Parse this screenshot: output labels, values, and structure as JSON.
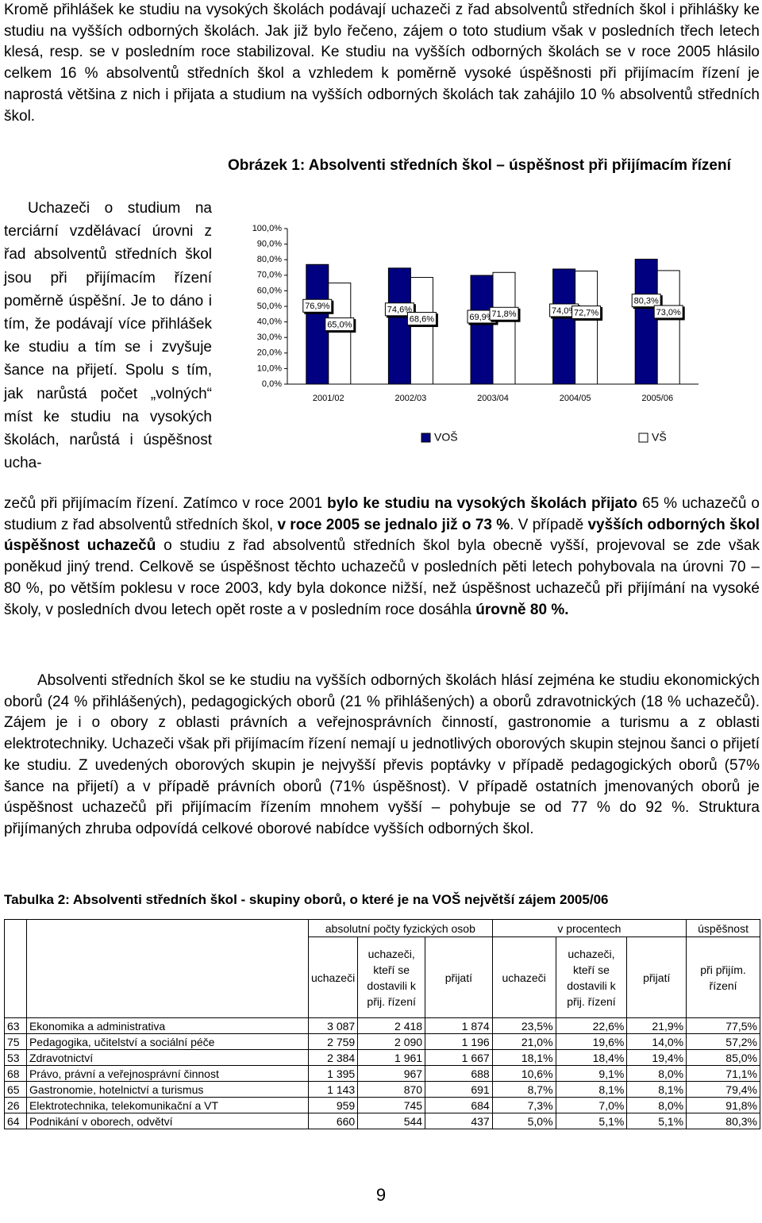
{
  "intro": "Kromě přihlášek ke studiu na vysokých školách podávají uchazeči z řad absolventů středních škol i přihlášky ke studiu na vyšších odborných školách. Jak již bylo řečeno, zájem o toto studium však v posledních třech letech klesá, resp. se v posledním roce stabilizoval. Ke studiu na vyšších odborných školách se v roce 2005 hlásilo celkem 16 % absolventů středních škol a vzhledem k poměrně vysoké úspěšnosti při přijímacím řízení je naprostá většina z nich i přijata a studium na vyšších odborných školách tak zahájilo 10 % absolventů středních škol.",
  "sidebar": "Uchazeči o studium na terciární vzdělávací úrovni z řad absolventů středních škol jsou při přijímacím řízení poměrně úspěšní. Je to dáno i tím, že podávají více přihlášek ke studiu a tím se i zvyšuje šance na přijetí. Spolu s tím, jak narůstá počet „volných“ míst ke studiu na vysokých školách, narůstá i úspěšnost ucha-",
  "paragraph2": {
    "runs": [
      {
        "text": "zečů při přijímacím řízení. Zatímco v roce 2001 ",
        "bold": false
      },
      {
        "text": "bylo ke studiu na vysokých školách přijato",
        "bold": true
      },
      {
        "text": " 65 % uchazečů o studium z řad absolventů středních škol, ",
        "bold": false
      },
      {
        "text": "v roce 2005 se jednalo již o 73 %",
        "bold": true
      },
      {
        "text": ". V případě ",
        "bold": false
      },
      {
        "text": "vyšších odborných škol úspěšnost uchazečů",
        "bold": true
      },
      {
        "text": " o studiu z řad absolventů středních škol byla obecně vyšší, projevoval se zde však poněkud jiný trend. Celkově se úspěšnost těchto uchazečů v posledních pěti letech pohybovala na úrovni 70 – 80 %, po větším poklesu v roce 2003, kdy byla dokonce nižší, než úspěšnost uchazečů při přijímání na vysoké školy, v posledních dvou letech opět roste a v posledním roce dosáhla ",
        "bold": false
      },
      {
        "text": "úrovně 80 %.",
        "bold": true
      }
    ]
  },
  "paragraph3": "Absolventi středních škol se ke studiu na vyšších odborných školách hlásí zejména ke studiu ekonomických oborů (24 % přihlášených), pedagogických oborů (21 % přihlášených) a oborů zdravotnických (18 % uchazečů). Zájem je i o obory z oblasti právních a veřejnosprávních činností, gastronomie a turismu a z oblasti elektrotechniky. Uchazeči však při přijímacím řízení nemají u jednotlivých oborových skupin stejnou šanci o přijetí ke studiu. Z uvedených oborových skupin je nejvyšší převis poptávky v případě pedagogických oborů (57% šance na přijetí) a v případě právních oborů (71% úspěšnost). V případě ostatních jmenovaných oborů je úspěšnost uchazečů při přijímacím řízením mnohem vyšší – pohybuje se od 77 % do 92 %. Struktura přijímaných zhruba odpovídá celkové oborové nabídce vyšších odborných škol.",
  "chart_data": {
    "type": "bar",
    "title": "Obrázek 1: Absolventi středních škol – úspěšnost při přijímacím řízení",
    "categories": [
      "2001/02",
      "2002/03",
      "2003/04",
      "2004/05",
      "2005/06"
    ],
    "series": [
      {
        "name": "VOŠ",
        "color": "#000080",
        "values": [
          76.9,
          74.6,
          69.9,
          74.0,
          80.3
        ],
        "value_labels": [
          "76,9%",
          "74,6%",
          "69,9%",
          "74,0%",
          "80,3%"
        ]
      },
      {
        "name": "VŠ",
        "color": "#ffffff",
        "values": [
          65.0,
          68.6,
          71.8,
          72.7,
          73.0
        ],
        "value_labels": [
          "65,0%",
          "68,6%",
          "71,8%",
          "72,7%",
          "73,0%"
        ]
      }
    ],
    "ylim": [
      0,
      100
    ],
    "yticks": [
      {
        "value": 0,
        "label": "0,0%"
      },
      {
        "value": 10,
        "label": "10,0%"
      },
      {
        "value": 20,
        "label": "20,0%"
      },
      {
        "value": 30,
        "label": "30,0%"
      },
      {
        "value": 40,
        "label": "40,0%"
      },
      {
        "value": 50,
        "label": "50,0%"
      },
      {
        "value": 60,
        "label": "60,0%"
      },
      {
        "value": 70,
        "label": "70,0%"
      },
      {
        "value": 80,
        "label": "80,0%"
      },
      {
        "value": 90,
        "label": "90,0%"
      },
      {
        "value": 100,
        "label": "100,0%"
      }
    ],
    "grid": false,
    "legend": "bottom"
  },
  "table": {
    "title": "Tabulka 2: Absolventi středních škol - skupiny oborů, o které je na VOŠ největší zájem 2005/06",
    "group_headers": [
      "absolutní počty fyzických osob",
      "v procentech",
      "úspěšnost"
    ],
    "headers": [
      "uchazeči",
      "uchazeči, kteří se dostavili k přij. řízení",
      "přijatí",
      "uchazeči",
      "uchazeči, kteří se dostavili k přij. řízení",
      "přijatí",
      "při přijím. řízení"
    ],
    "rows": [
      [
        "63",
        "Ekonomika a administrativa",
        "3 087",
        "2 418",
        "1 874",
        "23,5%",
        "22,6%",
        "21,9%",
        "77,5%"
      ],
      [
        "75",
        "Pedagogika, učitelství a sociální péče",
        "2 759",
        "2 090",
        "1 196",
        "21,0%",
        "19,6%",
        "14,0%",
        "57,2%"
      ],
      [
        "53",
        "Zdravotnictví",
        "2 384",
        "1 961",
        "1 667",
        "18,1%",
        "18,4%",
        "19,4%",
        "85,0%"
      ],
      [
        "68",
        "Právo, právní a veřejnosprávní činnost",
        "1 395",
        "967",
        "688",
        "10,6%",
        "9,1%",
        "8,0%",
        "71,1%"
      ],
      [
        "65",
        "Gastronomie, hotelnictví a turismus",
        "1 143",
        "870",
        "691",
        "8,7%",
        "8,1%",
        "8,1%",
        "79,4%"
      ],
      [
        "26",
        "Elektrotechnika, telekomunikační a VT",
        "959",
        "745",
        "684",
        "7,3%",
        "7,0%",
        "8,0%",
        "91,8%"
      ],
      [
        "64",
        "Podnikání v oborech, odvětví",
        "660",
        "544",
        "437",
        "5,0%",
        "5,1%",
        "5,1%",
        "80,3%"
      ]
    ]
  },
  "page_number": "9"
}
